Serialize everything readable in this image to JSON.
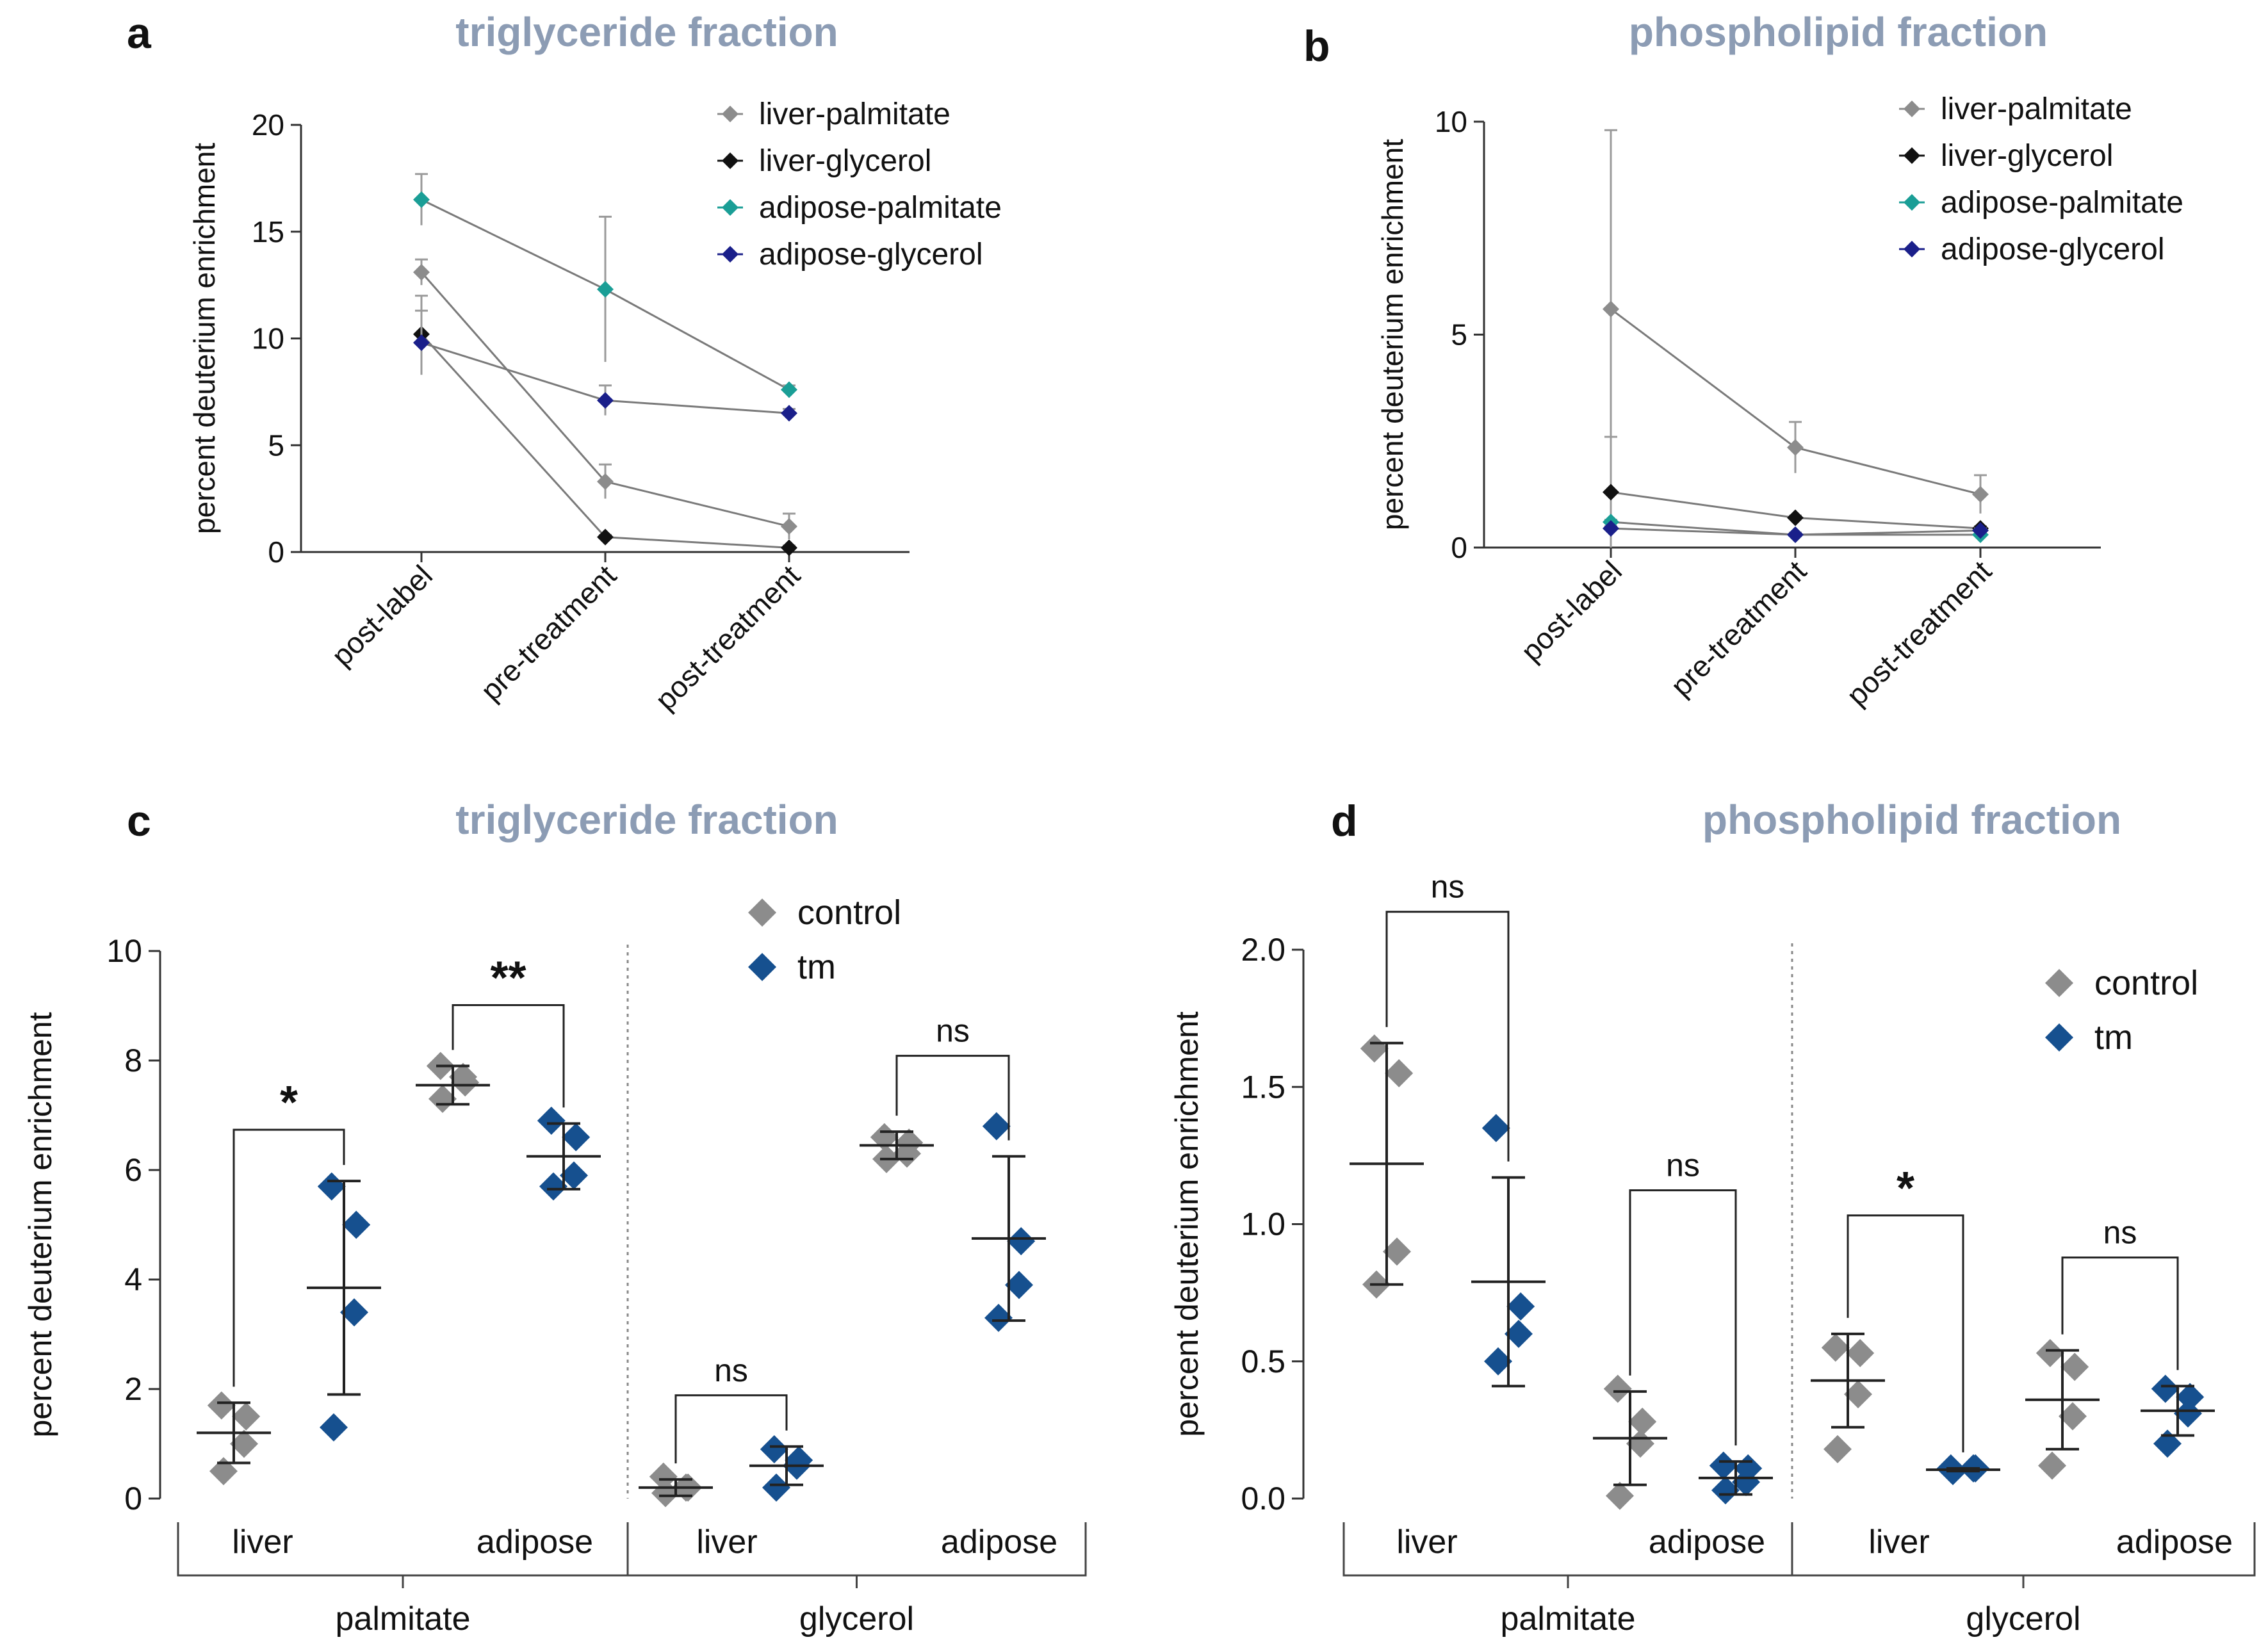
{
  "colors": {
    "title": "#8c9cb4",
    "axis": "#333333",
    "liver_palmitate": "#8c8c8c",
    "liver_glycerol": "#111111",
    "adipose_palmitate": "#1a9e96",
    "adipose_glycerol": "#1a1f8a",
    "control": "#8c8c8c",
    "tm": "#16508f",
    "errorbar": "#9a9a9a",
    "mean_bar": "#222222"
  },
  "chart_data": [
    {
      "panel": "a",
      "type": "line",
      "title": "triglyceride fraction",
      "ylabel": "percent deuterium enrichment",
      "ylim": [
        0,
        20
      ],
      "yticks": [
        "0",
        "5",
        "10",
        "15",
        "20"
      ],
      "categories": [
        "post-label",
        "pre-treatment",
        "post-treatment"
      ],
      "legend_position": "top-right",
      "series": [
        {
          "name": "liver-palmitate",
          "color_key": "liver_palmitate",
          "values": [
            13.1,
            3.3,
            1.2
          ],
          "err": [
            0.6,
            0.8,
            0.6
          ]
        },
        {
          "name": "liver-glycerol",
          "color_key": "liver_glycerol",
          "values": [
            10.2,
            0.7,
            0.2
          ],
          "err": [
            1.8,
            0.1,
            0.1
          ]
        },
        {
          "name": "adipose-palmitate",
          "color_key": "adipose_palmitate",
          "values": [
            16.5,
            12.3,
            7.6
          ],
          "err": [
            1.2,
            3.4,
            0.2
          ]
        },
        {
          "name": "adipose-glycerol",
          "color_key": "adipose_glycerol",
          "values": [
            9.8,
            7.1,
            6.5
          ],
          "err": [
            1.5,
            0.7,
            0.2
          ]
        }
      ]
    },
    {
      "panel": "b",
      "type": "line",
      "title": "phospholipid fraction",
      "ylabel": "percent deuterium enrichment",
      "ylim": [
        0,
        10
      ],
      "yticks": [
        "0",
        "5",
        "10"
      ],
      "categories": [
        "post-label",
        "pre-treatment",
        "post-treatment"
      ],
      "legend_position": "top-right",
      "series": [
        {
          "name": "liver-palmitate",
          "color_key": "liver_palmitate",
          "values": [
            5.6,
            2.35,
            1.25
          ],
          "err": [
            4.2,
            0.6,
            0.45
          ]
        },
        {
          "name": "liver-glycerol",
          "color_key": "liver_glycerol",
          "values": [
            1.3,
            0.7,
            0.45
          ],
          "err": [
            1.3,
            0.05,
            0.05
          ]
        },
        {
          "name": "adipose-palmitate",
          "color_key": "adipose_palmitate",
          "values": [
            0.6,
            0.3,
            0.3
          ],
          "err": [
            0.05,
            0.05,
            0.05
          ]
        },
        {
          "name": "adipose-glycerol",
          "color_key": "adipose_glycerol",
          "values": [
            0.45,
            0.3,
            0.4
          ],
          "err": [
            0.05,
            0.05,
            0.05
          ]
        }
      ]
    },
    {
      "panel": "c",
      "type": "scatter",
      "title": "triglyceride fraction",
      "ylabel": "percent deuterium enrichment",
      "ylim": [
        0,
        10
      ],
      "yticks": [
        "0",
        "2",
        "4",
        "6",
        "8",
        "10"
      ],
      "legend": [
        {
          "label": "control",
          "color_key": "control"
        },
        {
          "label": "tm",
          "color_key": "tm"
        }
      ],
      "groups": [
        {
          "tissue": "liver",
          "substrate": "palmitate",
          "control": {
            "points": [
              1.7,
              1.5,
              1.0,
              0.5
            ],
            "mean": 1.2,
            "sd": 0.55
          },
          "tm": {
            "points": [
              5.7,
              5.0,
              3.4,
              1.3
            ],
            "mean": 3.85,
            "sd": 1.95
          },
          "sig": "*"
        },
        {
          "tissue": "adipose",
          "substrate": "palmitate",
          "control": {
            "points": [
              7.9,
              7.6,
              7.7,
              7.3
            ],
            "mean": 7.55,
            "sd": 0.35
          },
          "tm": {
            "points": [
              6.9,
              6.6,
              5.9,
              5.7
            ],
            "mean": 6.25,
            "sd": 0.6
          },
          "sig": "**"
        },
        {
          "tissue": "liver",
          "substrate": "glycerol",
          "control": {
            "points": [
              0.4,
              0.2,
              0.2,
              0.1
            ],
            "mean": 0.2,
            "sd": 0.15
          },
          "tm": {
            "points": [
              0.9,
              0.7,
              0.6,
              0.2
            ],
            "mean": 0.6,
            "sd": 0.35
          },
          "sig": "ns"
        },
        {
          "tissue": "adipose",
          "substrate": "glycerol",
          "control": {
            "points": [
              6.6,
              6.5,
              6.3,
              6.2
            ],
            "mean": 6.45,
            "sd": 0.25
          },
          "tm": {
            "points": [
              6.8,
              4.7,
              3.9,
              3.3
            ],
            "mean": 4.75,
            "sd": 1.5
          },
          "sig": "ns"
        }
      ],
      "substrates": [
        "palmitate",
        "glycerol"
      ]
    },
    {
      "panel": "d",
      "type": "scatter",
      "title": "phospholipid fraction",
      "ylabel": "percent deuterium enrichment",
      "ylim": [
        0,
        2
      ],
      "yticks": [
        "0.0",
        "0.5",
        "1.0",
        "1.5",
        "2.0"
      ],
      "legend": [
        {
          "label": "control",
          "color_key": "control"
        },
        {
          "label": "tm",
          "color_key": "tm"
        }
      ],
      "groups": [
        {
          "tissue": "liver",
          "substrate": "palmitate",
          "control": {
            "points": [
              1.64,
              1.55,
              0.9,
              0.78
            ],
            "mean": 1.22,
            "sd": 0.44
          },
          "tm": {
            "points": [
              1.35,
              0.7,
              0.6,
              0.5
            ],
            "mean": 0.79,
            "sd": 0.38
          },
          "sig": "ns"
        },
        {
          "tissue": "adipose",
          "substrate": "palmitate",
          "control": {
            "points": [
              0.4,
              0.28,
              0.2,
              0.01
            ],
            "mean": 0.22,
            "sd": 0.17
          },
          "tm": {
            "points": [
              0.12,
              0.11,
              0.06,
              0.03
            ],
            "mean": 0.075,
            "sd": 0.06
          },
          "sig": "ns"
        },
        {
          "tissue": "liver",
          "substrate": "glycerol",
          "control": {
            "points": [
              0.55,
              0.53,
              0.38,
              0.18
            ],
            "mean": 0.43,
            "sd": 0.17
          },
          "tm": {
            "points": [
              0.11,
              0.11,
              0.11,
              0.1
            ],
            "mean": 0.105,
            "sd": 0.005
          },
          "sig": "*"
        },
        {
          "tissue": "adipose",
          "substrate": "glycerol",
          "control": {
            "points": [
              0.53,
              0.48,
              0.3,
              0.12
            ],
            "mean": 0.36,
            "sd": 0.18
          },
          "tm": {
            "points": [
              0.4,
              0.37,
              0.31,
              0.2
            ],
            "mean": 0.32,
            "sd": 0.09
          },
          "sig": "ns"
        }
      ],
      "substrates": [
        "palmitate",
        "glycerol"
      ]
    }
  ]
}
